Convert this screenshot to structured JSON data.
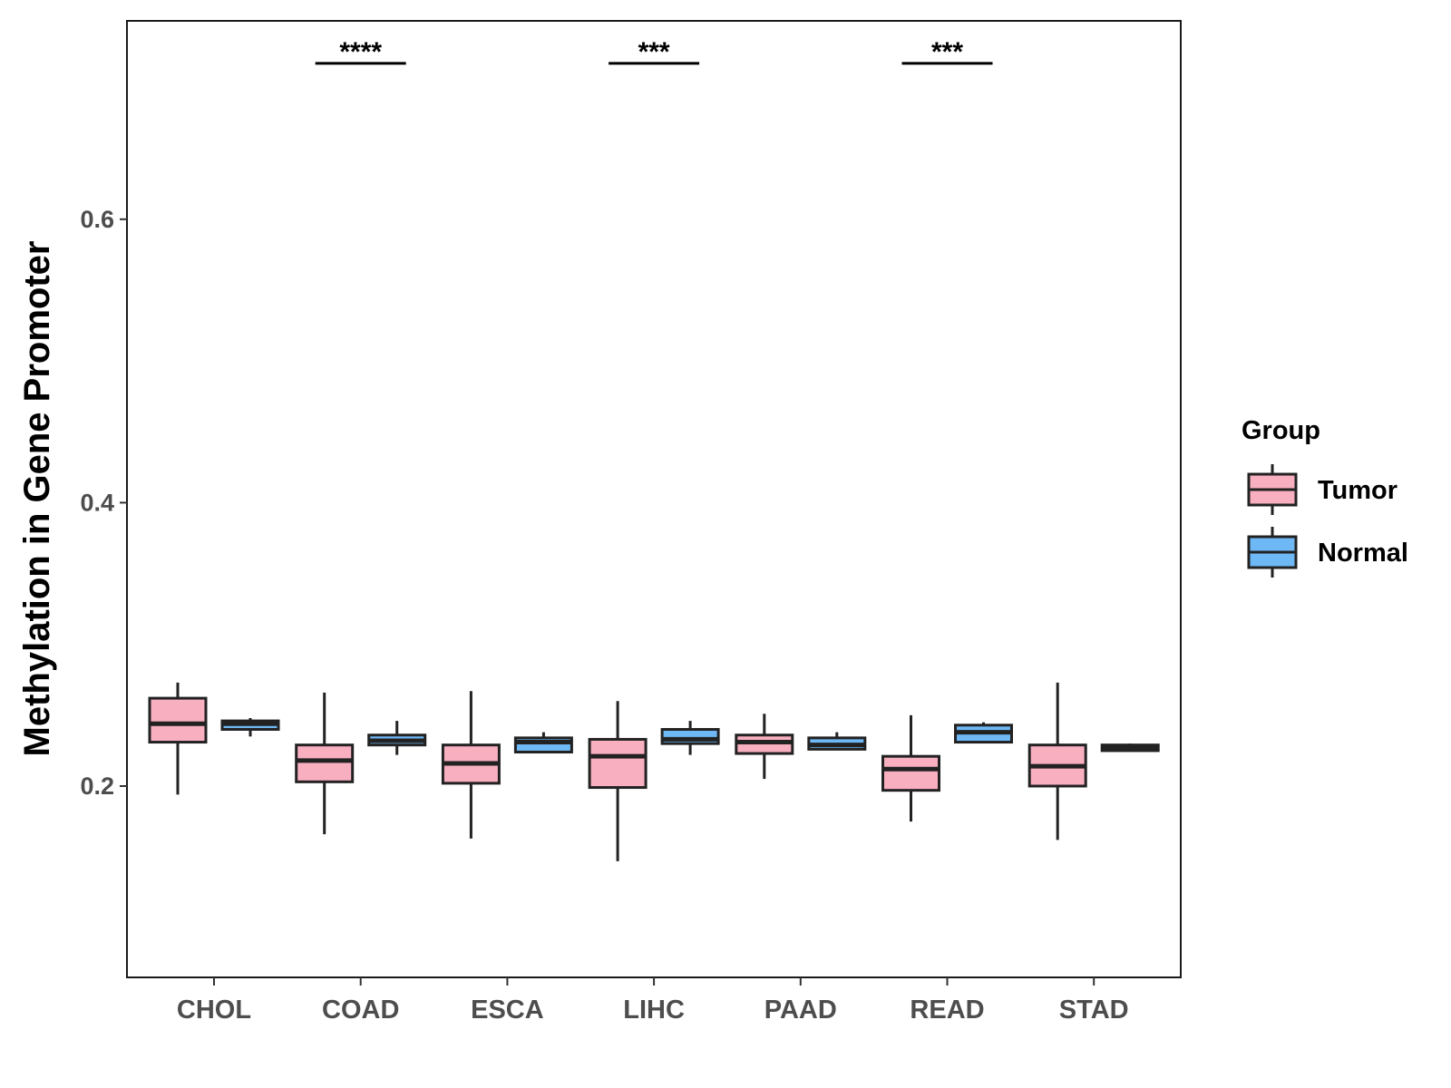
{
  "chart_data": {
    "type": "boxplot",
    "title": "",
    "xlabel": "",
    "ylabel": "Methylation in Gene Promoter",
    "ylim": [
      0.065,
      0.74
    ],
    "yticks": [
      0.2,
      0.4,
      0.6
    ],
    "ytick_labels": [
      "0.2",
      "0.4",
      "0.6"
    ],
    "categories": [
      "CHOL",
      "COAD",
      "ESCA",
      "LIHC",
      "PAAD",
      "READ",
      "STAD"
    ],
    "legend": {
      "title": "Group",
      "position": "right",
      "entries": [
        {
          "label": "Tumor",
          "color": "#F8AFC0"
        },
        {
          "label": "Normal",
          "color": "#6EB8F5"
        }
      ]
    },
    "series": [
      {
        "name": "Tumor",
        "color": "#F8AFC0",
        "boxes": [
          {
            "category": "CHOL",
            "whisker_low": 0.194,
            "q1": 0.231,
            "median": 0.244,
            "q3": 0.262,
            "whisker_high": 0.273
          },
          {
            "category": "COAD",
            "whisker_low": 0.166,
            "q1": 0.203,
            "median": 0.218,
            "q3": 0.229,
            "whisker_high": 0.266
          },
          {
            "category": "ESCA",
            "whisker_low": 0.163,
            "q1": 0.202,
            "median": 0.216,
            "q3": 0.229,
            "whisker_high": 0.267
          },
          {
            "category": "LIHC",
            "whisker_low": 0.147,
            "q1": 0.199,
            "median": 0.221,
            "q3": 0.233,
            "whisker_high": 0.26
          },
          {
            "category": "PAAD",
            "whisker_low": 0.205,
            "q1": 0.223,
            "median": 0.231,
            "q3": 0.236,
            "whisker_high": 0.251
          },
          {
            "category": "READ",
            "whisker_low": 0.175,
            "q1": 0.197,
            "median": 0.212,
            "q3": 0.221,
            "whisker_high": 0.25
          },
          {
            "category": "STAD",
            "whisker_low": 0.162,
            "q1": 0.2,
            "median": 0.214,
            "q3": 0.229,
            "whisker_high": 0.273
          }
        ]
      },
      {
        "name": "Normal",
        "color": "#6EB8F5",
        "boxes": [
          {
            "category": "CHOL",
            "whisker_low": 0.235,
            "q1": 0.24,
            "median": 0.244,
            "q3": 0.246,
            "whisker_high": 0.248
          },
          {
            "category": "COAD",
            "whisker_low": 0.222,
            "q1": 0.229,
            "median": 0.232,
            "q3": 0.236,
            "whisker_high": 0.246
          },
          {
            "category": "ESCA",
            "whisker_low": 0.224,
            "q1": 0.224,
            "median": 0.231,
            "q3": 0.234,
            "whisker_high": 0.238
          },
          {
            "category": "LIHC",
            "whisker_low": 0.222,
            "q1": 0.23,
            "median": 0.233,
            "q3": 0.24,
            "whisker_high": 0.246
          },
          {
            "category": "PAAD",
            "whisker_low": 0.226,
            "q1": 0.226,
            "median": 0.229,
            "q3": 0.234,
            "whisker_high": 0.238
          },
          {
            "category": "READ",
            "whisker_low": 0.231,
            "q1": 0.231,
            "median": 0.238,
            "q3": 0.243,
            "whisker_high": 0.245
          },
          {
            "category": "STAD",
            "whisker_low": 0.225,
            "q1": 0.225,
            "median": 0.227,
            "q3": 0.229,
            "whisker_high": 0.23
          }
        ]
      }
    ],
    "annotations": [
      {
        "category": "COAD",
        "text": "****",
        "y": 0.71
      },
      {
        "category": "LIHC",
        "text": "***",
        "y": 0.71
      },
      {
        "category": "READ",
        "text": "***",
        "y": 0.71
      }
    ]
  }
}
